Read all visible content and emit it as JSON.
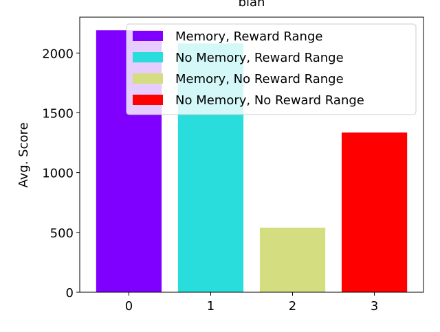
{
  "chart_data": {
    "type": "bar",
    "title": "blah",
    "xlabel": "",
    "ylabel": "Avg. Score",
    "categories": [
      "0",
      "1",
      "2",
      "3"
    ],
    "series": [
      {
        "name": "Memory, Reward Range",
        "values": [
          2190,
          null,
          null,
          null
        ],
        "color": "#8000ff"
      },
      {
        "name": "No Memory, Reward Range",
        "values": [
          null,
          2080,
          null,
          null
        ],
        "color": "#2adddd"
      },
      {
        "name": "Memory, No Reward Range",
        "values": [
          null,
          null,
          540,
          null
        ],
        "color": "#d4dd80"
      },
      {
        "name": "No Memory, No Reward Range",
        "values": [
          null,
          null,
          null,
          1335
        ],
        "color": "#ff0000"
      }
    ],
    "yticks": [
      0,
      500,
      1000,
      1500,
      2000
    ],
    "ylim": [
      0,
      2300
    ],
    "grid": false,
    "legend_position": "top-right"
  }
}
